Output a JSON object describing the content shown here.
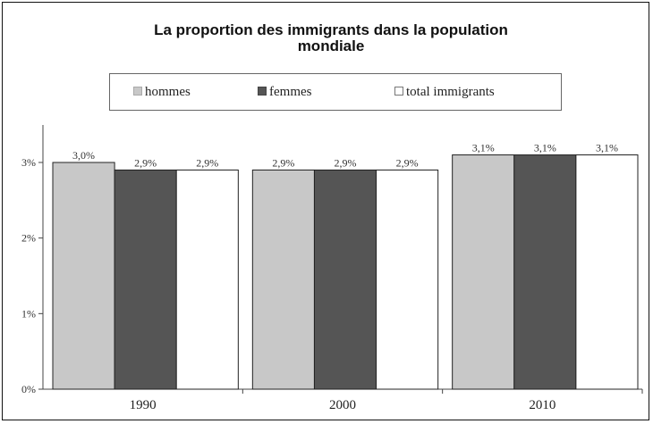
{
  "chart_data": {
    "type": "bar",
    "title_lines": [
      "La proportion des immigrants dans la population",
      "mondiale"
    ],
    "categories": [
      "1990",
      "2000",
      "2010"
    ],
    "series": [
      {
        "name": "hommes",
        "color": "#c8c8c8",
        "values": [
          3.0,
          2.9,
          3.1
        ],
        "labels": [
          "3,0%",
          "2,9%",
          "3,1%"
        ]
      },
      {
        "name": "femmes",
        "color": "#555555",
        "values": [
          2.9,
          2.9,
          3.1
        ],
        "labels": [
          "2,9%",
          "2,9%",
          "3,1%"
        ]
      },
      {
        "name": "total immigrants",
        "color": "#ffffff",
        "values": [
          2.9,
          2.9,
          3.1
        ],
        "labels": [
          "2,9%",
          "2,9%",
          "3,1%"
        ]
      }
    ],
    "ylim": [
      0,
      3
    ],
    "yticks": [
      0,
      1,
      2,
      3
    ],
    "ytick_labels": [
      "0%",
      "1%",
      "2%",
      "3%"
    ],
    "legend_position": "top",
    "grid": false
  }
}
